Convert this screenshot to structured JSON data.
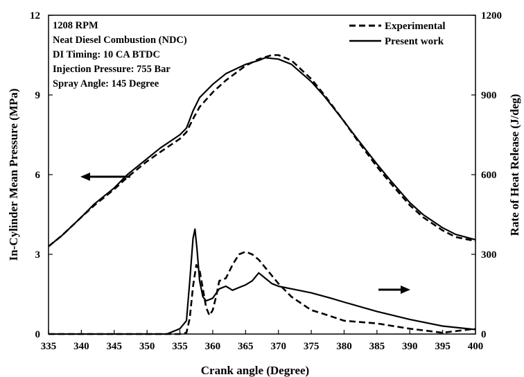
{
  "chart_data": {
    "type": "line",
    "title": "",
    "xlabel": "Crank angle (Degree)",
    "ylabel_left": "In-Cylinder Mean Pressure (MPa)",
    "ylabel_right": "Rate of Heat Release (J/deg)",
    "xlim": [
      335,
      400
    ],
    "ylim_left": [
      0,
      12
    ],
    "ylim_right": [
      0,
      1200
    ],
    "x_ticks": [
      "335",
      "340",
      "345",
      "350",
      "355",
      "360",
      "365",
      "370",
      "375",
      "380",
      "385",
      "390",
      "395",
      "400"
    ],
    "y_left_ticks": [
      "0",
      "3",
      "6",
      "9",
      "12"
    ],
    "y_right_ticks": [
      "0",
      "300",
      "600",
      "900",
      "1200"
    ],
    "grid": false,
    "legend_position": "top-right",
    "annotations": [
      "1208 RPM",
      "Neat Diesel Combustion (NDC)",
      "DI Timing: 10 CA BTDC",
      "Injection Pressure: 755 Bar",
      "Spray Angle: 145 Degree"
    ],
    "series": [
      {
        "name": "Experimental",
        "axis": "left",
        "style": "dashed",
        "x": [
          335,
          337,
          340,
          342,
          345,
          347,
          350,
          352,
          355,
          356,
          357,
          358,
          360,
          362,
          365,
          367,
          369,
          370,
          372,
          375,
          377,
          380,
          382,
          385,
          387,
          390,
          392,
          395,
          397,
          400
        ],
        "y": [
          3.3,
          3.7,
          4.4,
          4.85,
          5.45,
          5.9,
          6.5,
          6.85,
          7.35,
          7.6,
          8.1,
          8.55,
          9.1,
          9.55,
          10.1,
          10.35,
          10.5,
          10.5,
          10.3,
          9.6,
          9.0,
          8.0,
          7.3,
          6.3,
          5.7,
          4.85,
          4.4,
          3.9,
          3.65,
          3.5
        ]
      },
      {
        "name": "Present work",
        "axis": "left",
        "style": "solid",
        "x": [
          335,
          337,
          340,
          342,
          345,
          347,
          350,
          352,
          355,
          356,
          357,
          358,
          360,
          362,
          365,
          367,
          368,
          370,
          372,
          375,
          377,
          380,
          382,
          385,
          387,
          390,
          392,
          395,
          397,
          400
        ],
        "y": [
          3.3,
          3.7,
          4.4,
          4.9,
          5.5,
          6.0,
          6.6,
          7.0,
          7.5,
          7.75,
          8.4,
          8.9,
          9.4,
          9.8,
          10.15,
          10.3,
          10.4,
          10.35,
          10.15,
          9.5,
          8.95,
          8.0,
          7.35,
          6.4,
          5.8,
          4.95,
          4.5,
          4.0,
          3.75,
          3.55
        ]
      },
      {
        "name": "",
        "axis": "right",
        "style": "dashed",
        "x": [
          335,
          350,
          355,
          356,
          356.5,
          357,
          357.5,
          358,
          358.5,
          359,
          359.5,
          360,
          360.5,
          361,
          362,
          363,
          364,
          365,
          366,
          367,
          368,
          369,
          370,
          372,
          375,
          377,
          380,
          385,
          390,
          395,
          400
        ],
        "y": [
          0,
          0,
          0,
          5,
          60,
          180,
          260,
          240,
          170,
          100,
          70,
          90,
          140,
          200,
          210,
          260,
          300,
          310,
          300,
          280,
          250,
          220,
          190,
          140,
          90,
          75,
          50,
          40,
          20,
          5,
          20
        ]
      },
      {
        "name": "",
        "axis": "right",
        "style": "solid",
        "x": [
          335,
          353,
          355,
          356,
          356.5,
          357,
          357.3,
          357.6,
          358,
          358.5,
          359,
          360,
          361,
          362,
          363,
          364,
          365,
          366,
          367,
          368,
          369,
          370,
          372,
          375,
          378,
          380,
          385,
          390,
          395,
          400
        ],
        "y": [
          0,
          0,
          20,
          50,
          200,
          360,
          395,
          320,
          200,
          140,
          125,
          135,
          170,
          180,
          165,
          175,
          185,
          200,
          230,
          210,
          190,
          180,
          170,
          155,
          135,
          120,
          85,
          55,
          30,
          17
        ]
      }
    ]
  }
}
